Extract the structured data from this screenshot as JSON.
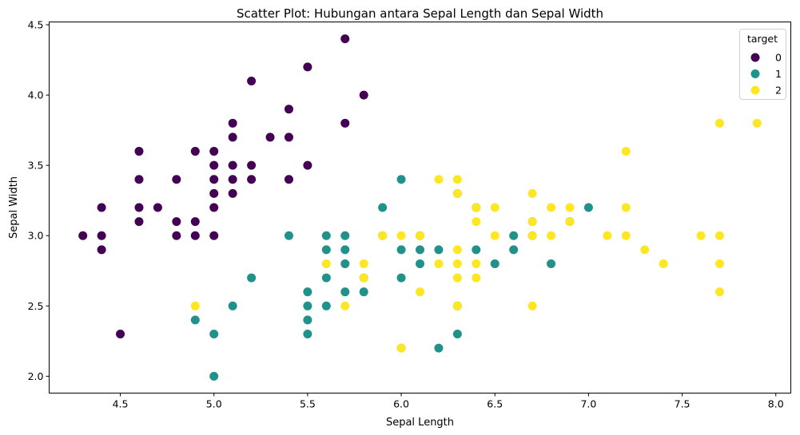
{
  "chart_data": {
    "type": "scatter",
    "title": "Scatter Plot: Hubungan antara Sepal Length dan Sepal Width",
    "xlabel": "Sepal Length",
    "ylabel": "Sepal Width",
    "xlim": [
      4.12,
      8.08
    ],
    "ylim": [
      1.88,
      4.52
    ],
    "xticks": [
      "4.5",
      "5.0",
      "5.5",
      "6.0",
      "6.5",
      "7.0",
      "7.5",
      "8.0"
    ],
    "yticks": [
      "2.0",
      "2.5",
      "3.0",
      "3.5",
      "4.0",
      "4.5"
    ],
    "grid": false,
    "legend": {
      "title": "target",
      "placement": "top-right"
    },
    "series": [
      {
        "name": "0",
        "color": "#440154",
        "points": [
          [
            4.3,
            3.0
          ],
          [
            4.4,
            2.9
          ],
          [
            4.4,
            3.0
          ],
          [
            4.4,
            3.2
          ],
          [
            4.5,
            2.3
          ],
          [
            4.6,
            3.1
          ],
          [
            4.6,
            3.2
          ],
          [
            4.6,
            3.4
          ],
          [
            4.6,
            3.6
          ],
          [
            4.7,
            3.2
          ],
          [
            4.8,
            3.0
          ],
          [
            4.8,
            3.1
          ],
          [
            4.8,
            3.4
          ],
          [
            4.9,
            3.0
          ],
          [
            4.9,
            3.1
          ],
          [
            4.9,
            3.6
          ],
          [
            5.0,
            3.0
          ],
          [
            5.0,
            3.2
          ],
          [
            5.0,
            3.3
          ],
          [
            5.0,
            3.4
          ],
          [
            5.0,
            3.5
          ],
          [
            5.0,
            3.6
          ],
          [
            5.1,
            3.3
          ],
          [
            5.1,
            3.4
          ],
          [
            5.1,
            3.5
          ],
          [
            5.1,
            3.7
          ],
          [
            5.1,
            3.8
          ],
          [
            5.2,
            3.4
          ],
          [
            5.2,
            3.5
          ],
          [
            5.2,
            4.1
          ],
          [
            5.3,
            3.7
          ],
          [
            5.4,
            3.4
          ],
          [
            5.4,
            3.7
          ],
          [
            5.4,
            3.9
          ],
          [
            5.5,
            3.5
          ],
          [
            5.5,
            4.2
          ],
          [
            5.7,
            3.8
          ],
          [
            5.7,
            4.4
          ],
          [
            5.8,
            4.0
          ]
        ]
      },
      {
        "name": "1",
        "color": "#21918c",
        "points": [
          [
            4.9,
            2.4
          ],
          [
            5.0,
            2.0
          ],
          [
            5.0,
            2.3
          ],
          [
            5.1,
            2.5
          ],
          [
            5.2,
            2.7
          ],
          [
            5.4,
            3.0
          ],
          [
            5.5,
            2.3
          ],
          [
            5.5,
            2.4
          ],
          [
            5.5,
            2.5
          ],
          [
            5.5,
            2.6
          ],
          [
            5.6,
            2.5
          ],
          [
            5.6,
            2.7
          ],
          [
            5.6,
            2.9
          ],
          [
            5.6,
            3.0
          ],
          [
            5.7,
            2.6
          ],
          [
            5.7,
            2.8
          ],
          [
            5.7,
            2.9
          ],
          [
            5.7,
            3.0
          ],
          [
            5.8,
            2.6
          ],
          [
            5.8,
            2.7
          ],
          [
            5.9,
            3.0
          ],
          [
            5.9,
            3.2
          ],
          [
            6.0,
            2.2
          ],
          [
            6.0,
            2.7
          ],
          [
            6.0,
            2.9
          ],
          [
            6.0,
            3.4
          ],
          [
            6.1,
            2.8
          ],
          [
            6.1,
            2.9
          ],
          [
            6.1,
            3.0
          ],
          [
            6.2,
            2.2
          ],
          [
            6.2,
            2.9
          ],
          [
            6.3,
            2.3
          ],
          [
            6.3,
            2.5
          ],
          [
            6.3,
            3.3
          ],
          [
            6.4,
            2.9
          ],
          [
            6.4,
            3.2
          ],
          [
            6.5,
            2.8
          ],
          [
            6.6,
            2.9
          ],
          [
            6.6,
            3.0
          ],
          [
            6.7,
            3.0
          ],
          [
            6.7,
            3.1
          ],
          [
            6.8,
            2.8
          ],
          [
            6.9,
            3.1
          ],
          [
            7.0,
            3.2
          ]
        ]
      },
      {
        "name": "2",
        "color": "#fde725",
        "points": [
          [
            4.9,
            2.5
          ],
          [
            5.6,
            2.8
          ],
          [
            5.7,
            2.5
          ],
          [
            5.8,
            2.7
          ],
          [
            5.8,
            2.8
          ],
          [
            5.9,
            3.0
          ],
          [
            6.0,
            2.2
          ],
          [
            6.0,
            3.0
          ],
          [
            6.1,
            2.6
          ],
          [
            6.1,
            3.0
          ],
          [
            6.2,
            2.8
          ],
          [
            6.2,
            3.4
          ],
          [
            6.3,
            2.5
          ],
          [
            6.3,
            2.7
          ],
          [
            6.3,
            2.8
          ],
          [
            6.3,
            2.9
          ],
          [
            6.3,
            3.3
          ],
          [
            6.3,
            3.4
          ],
          [
            6.4,
            2.7
          ],
          [
            6.4,
            2.8
          ],
          [
            6.4,
            3.1
          ],
          [
            6.4,
            3.2
          ],
          [
            6.5,
            3.0
          ],
          [
            6.5,
            3.2
          ],
          [
            6.7,
            2.5
          ],
          [
            6.7,
            3.0
          ],
          [
            6.7,
            3.1
          ],
          [
            6.7,
            3.3
          ],
          [
            6.8,
            3.0
          ],
          [
            6.8,
            3.2
          ],
          [
            6.9,
            3.1
          ],
          [
            6.9,
            3.2
          ],
          [
            7.1,
            3.0
          ],
          [
            7.2,
            3.0
          ],
          [
            7.2,
            3.2
          ],
          [
            7.2,
            3.6
          ],
          [
            7.3,
            2.9
          ],
          [
            7.4,
            2.8
          ],
          [
            7.6,
            3.0
          ],
          [
            7.7,
            2.6
          ],
          [
            7.7,
            2.8
          ],
          [
            7.7,
            3.0
          ],
          [
            7.7,
            3.8
          ],
          [
            7.9,
            3.8
          ]
        ]
      }
    ]
  }
}
